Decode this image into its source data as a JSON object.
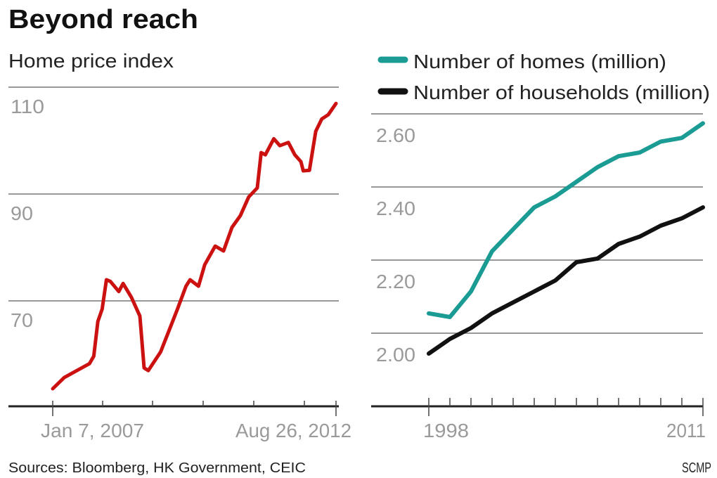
{
  "title": "Beyond reach",
  "footer": {
    "sources": "Sources: Bloomberg,  HK Government, CEIC",
    "credit": "SCMP"
  },
  "colors": {
    "price": "#cc1111",
    "homes": "#1a9b94",
    "households": "#111111"
  },
  "chart_data": [
    {
      "type": "line",
      "title": "Home price index",
      "y_ticks": [
        "110",
        "90",
        "70"
      ],
      "y_tick_values": [
        110,
        90,
        70
      ],
      "x_tick_labels": [
        "Jan 7, 2007",
        "Aug 26, 2012"
      ],
      "xlim": [
        "2007-01-07",
        "2012-08-26"
      ],
      "grid": true,
      "series": [
        {
          "color": "#cc1111",
          "points": [
            [
              "2007-01-07",
              57.1
            ],
            [
              "2007-04-01",
              59.2
            ],
            [
              "2007-07-01",
              60.5
            ],
            [
              "2007-10-01",
              61.8
            ],
            [
              "2007-11-01",
              63.2
            ],
            [
              "2007-12-01",
              69.7
            ],
            [
              "2008-01-01",
              72.0
            ],
            [
              "2008-02-01",
              77.5
            ],
            [
              "2008-03-01",
              77.2
            ],
            [
              "2008-05-01",
              75.3
            ],
            [
              "2008-06-01",
              76.8
            ],
            [
              "2008-08-01",
              74.2
            ],
            [
              "2008-10-01",
              70.7
            ],
            [
              "2008-11-01",
              61.0
            ],
            [
              "2008-12-01",
              60.5
            ],
            [
              "2009-03-01",
              64.0
            ],
            [
              "2009-05-01",
              68.0
            ],
            [
              "2009-07-01",
              72.0
            ],
            [
              "2009-09-01",
              76.3
            ],
            [
              "2009-10-01",
              77.5
            ],
            [
              "2009-12-01",
              76.3
            ],
            [
              "2010-01-15",
              80.3
            ],
            [
              "2010-04-01",
              83.8
            ],
            [
              "2010-06-01",
              82.9
            ],
            [
              "2010-08-01",
              87.3
            ],
            [
              "2010-10-01",
              89.5
            ],
            [
              "2010-12-01",
              93.0
            ],
            [
              "2011-02-01",
              94.7
            ],
            [
              "2011-03-01",
              101.3
            ],
            [
              "2011-04-01",
              100.9
            ],
            [
              "2011-06-01",
              103.9
            ],
            [
              "2011-07-15",
              102.6
            ],
            [
              "2011-09-15",
              103.2
            ],
            [
              "2011-11-01",
              100.9
            ],
            [
              "2011-12-15",
              99.6
            ],
            [
              "2012-01-01",
              97.9
            ],
            [
              "2012-02-15",
              98.0
            ],
            [
              "2012-04-01",
              105.3
            ],
            [
              "2012-05-15",
              107.6
            ],
            [
              "2012-07-01",
              108.4
            ],
            [
              "2012-08-26",
              110.5
            ]
          ]
        }
      ]
    },
    {
      "type": "line",
      "y_ticks": [
        "2.60",
        "2.40",
        "2.20",
        "2.00"
      ],
      "y_tick_values": [
        2.6,
        2.4,
        2.2,
        2.0
      ],
      "x_tick_labels": [
        "1998",
        "2011"
      ],
      "x": [
        1998,
        1999,
        2000,
        2001,
        2002,
        2003,
        2004,
        2005,
        2006,
        2007,
        2008,
        2009,
        2010,
        2011
      ],
      "grid": true,
      "legend": "top",
      "series": [
        {
          "name": "Number of homes (million)",
          "color": "#1a9b94",
          "values": [
            2.11,
            2.1,
            2.17,
            2.28,
            2.34,
            2.4,
            2.43,
            2.47,
            2.51,
            2.54,
            2.55,
            2.58,
            2.59,
            2.63
          ]
        },
        {
          "name": "Number of households (million)",
          "color": "#111111",
          "values": [
            2.0,
            2.04,
            2.07,
            2.11,
            2.14,
            2.17,
            2.2,
            2.25,
            2.26,
            2.3,
            2.32,
            2.35,
            2.37,
            2.4
          ]
        }
      ]
    }
  ]
}
